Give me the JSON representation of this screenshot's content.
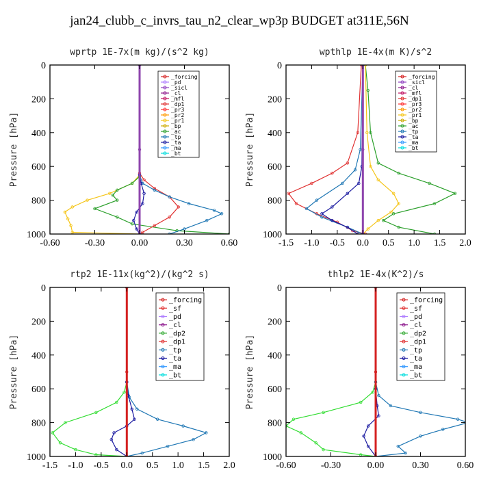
{
  "figure_title": "jan24_clubb_c_invrs_tau_n2_clear_wp3p  BUDGET at311E,56N",
  "chart_data": [
    {
      "type": "line",
      "title": "wprtp  1E-7x(m kg)/(s^2 kg)",
      "ylabel": "Pressure [hPa]",
      "xlim": [
        -0.6,
        0.6
      ],
      "ylim": [
        1000,
        0
      ],
      "xticks": [
        "-0.60",
        "-0.30",
        "0.00",
        "0.30",
        "0.60"
      ],
      "xtick_values": [
        -0.6,
        -0.3,
        0.0,
        0.3,
        0.6
      ],
      "yticks": [
        "0",
        "200",
        "400",
        "600",
        "800",
        "1000"
      ],
      "ytick_values": [
        0,
        200,
        400,
        600,
        800,
        1000
      ],
      "legend": [
        "_forcing",
        "_pd",
        "_sicl",
        "_cl",
        "_mfl",
        "_dp1",
        "_pr3",
        "_pr2",
        "_pr1",
        "_bp",
        "_ac",
        "_tp",
        "_ta",
        "_ma",
        "_bt"
      ],
      "series": [
        {
          "name": "_pr1",
          "color": "#f5c518",
          "x": [
            0,
            0,
            -0.05,
            -0.2,
            -0.35,
            -0.45,
            -0.5,
            -0.48,
            -0.46,
            -0.45,
            0
          ],
          "y": [
            0,
            650,
            700,
            760,
            800,
            840,
            870,
            910,
            950,
            990,
            1000
          ]
        },
        {
          "name": "_ac",
          "color": "#2ca02c",
          "x": [
            0,
            0,
            -0.05,
            -0.15,
            -0.18,
            -0.15,
            -0.3,
            -0.15,
            -0.05,
            0.25,
            0.6
          ],
          "y": [
            0,
            660,
            700,
            740,
            770,
            800,
            850,
            900,
            940,
            980,
            1000
          ]
        },
        {
          "name": "_dp1",
          "color": "#e03030",
          "x": [
            0,
            0,
            0.03,
            0.1,
            0.2,
            0.26,
            0.2,
            0.1,
            0.02,
            0
          ],
          "y": [
            0,
            640,
            680,
            730,
            780,
            840,
            900,
            950,
            990,
            1000
          ]
        },
        {
          "name": "_tp",
          "color": "#1f77b4",
          "x": [
            0,
            0,
            0.02,
            0.1,
            0.2,
            0.33,
            0.5,
            0.55,
            0.45,
            0.3,
            0.2
          ],
          "y": [
            0,
            650,
            700,
            740,
            780,
            820,
            860,
            880,
            920,
            970,
            1000
          ]
        },
        {
          "name": "_ta",
          "color": "#1a1aa0",
          "x": [
            0,
            0,
            0.01,
            0.03,
            0.02,
            -0.02,
            -0.04,
            -0.02,
            0
          ],
          "y": [
            0,
            650,
            700,
            760,
            820,
            870,
            920,
            970,
            1000
          ]
        },
        {
          "name": "_bt",
          "color": "#8e44ad",
          "x": [
            0,
            0,
            0
          ],
          "y": [
            0,
            500,
            1000
          ]
        }
      ]
    },
    {
      "type": "line",
      "title": "wpthlp  1E-4x(m K)/s^2",
      "ylabel": "Pressure [hPa]",
      "xlim": [
        -1.5,
        2.0
      ],
      "ylim": [
        1000,
        0
      ],
      "xticks": [
        "-1.5",
        "-1.0",
        "-0.5",
        "0.0",
        "0.5",
        "1.0",
        "1.5",
        "2.0"
      ],
      "xtick_values": [
        -1.5,
        -1.0,
        -0.5,
        0.0,
        0.5,
        1.0,
        1.5,
        2.0
      ],
      "yticks": [
        "0",
        "200",
        "400",
        "600",
        "800",
        "1000"
      ],
      "ytick_values": [
        0,
        200,
        400,
        600,
        800,
        1000
      ],
      "legend": [
        "_forcing",
        "_sicl",
        "_cl",
        "_mfl",
        "_dp1",
        "_pr3",
        "_pr2",
        "_pr1",
        "_bp",
        "_ac",
        "_tp",
        "_ta",
        "_ma",
        "_bt"
      ],
      "series": [
        {
          "name": "_ac",
          "color": "#2ca02c",
          "x": [
            0.05,
            0.1,
            0.15,
            0.3,
            0.7,
            1.3,
            1.8,
            1.4,
            0.6,
            0.4,
            0.7,
            1.4
          ],
          "y": [
            0,
            150,
            400,
            580,
            640,
            700,
            760,
            820,
            880,
            920,
            960,
            1000
          ]
        },
        {
          "name": "_dp1",
          "color": "#e03030",
          "x": [
            -0.03,
            -0.1,
            -0.3,
            -0.6,
            -1.0,
            -1.45,
            -1.3,
            -0.9,
            -0.5,
            -0.2,
            0.05
          ],
          "y": [
            0,
            400,
            580,
            640,
            700,
            760,
            820,
            880,
            930,
            980,
            1000
          ]
        },
        {
          "name": "_pr1",
          "color": "#f5c518",
          "x": [
            0.05,
            0.08,
            0.15,
            0.3,
            0.6,
            0.7,
            0.55,
            0.3,
            0.1,
            0
          ],
          "y": [
            0,
            400,
            600,
            680,
            760,
            820,
            870,
            920,
            970,
            1000
          ]
        },
        {
          "name": "_tp",
          "color": "#1f77b4",
          "x": [
            0,
            -0.05,
            -0.15,
            -0.4,
            -0.9,
            -1.1,
            -0.8,
            -0.3,
            0
          ],
          "y": [
            0,
            500,
            620,
            700,
            800,
            850,
            900,
            960,
            1000
          ]
        },
        {
          "name": "_ta",
          "color": "#1a1aa0",
          "x": [
            0,
            -0.02,
            -0.08,
            -0.3,
            -0.6,
            -0.8,
            -0.6,
            -0.3,
            -0.1
          ],
          "y": [
            0,
            600,
            700,
            760,
            840,
            880,
            920,
            960,
            1000
          ]
        },
        {
          "name": "_bt",
          "color": "#8e44ad",
          "x": [
            0,
            0,
            0
          ],
          "y": [
            0,
            500,
            1000
          ]
        }
      ]
    },
    {
      "type": "line",
      "title": "rtp2  1E-11x(kg^2)/(kg^2 s)",
      "ylabel": "Pressure [hPa]",
      "xlim": [
        -1.5,
        2.0
      ],
      "ylim": [
        1000,
        0
      ],
      "xticks": [
        "-1.5",
        "-1.0",
        "-0.5",
        "0.0",
        "0.5",
        "1.0",
        "1.5",
        "2.0"
      ],
      "xtick_values": [
        -1.5,
        -1.0,
        -0.5,
        0.0,
        0.5,
        1.0,
        1.5,
        2.0
      ],
      "yticks": [
        "0",
        "200",
        "400",
        "600",
        "800",
        "1000"
      ],
      "ytick_values": [
        0,
        200,
        400,
        600,
        800,
        1000
      ],
      "legend": [
        "_forcing",
        "_sf",
        "_pd",
        "_cl",
        "_dp2",
        "_dp1",
        "_tp",
        "_ta",
        "_ma",
        "_bt"
      ],
      "series": [
        {
          "name": "_dp1",
          "color": "#33dd33",
          "x": [
            0,
            0,
            -0.05,
            -0.2,
            -0.6,
            -1.2,
            -1.45,
            -1.3,
            -1.0,
            -0.6,
            0
          ],
          "y": [
            0,
            560,
            620,
            680,
            740,
            800,
            860,
            920,
            960,
            990,
            1000
          ]
        },
        {
          "name": "_tp",
          "color": "#1f77b4",
          "x": [
            0,
            0,
            0.05,
            0.2,
            0.6,
            1.1,
            1.55,
            1.3,
            0.8,
            0.3,
            0
          ],
          "y": [
            0,
            560,
            650,
            720,
            780,
            820,
            860,
            900,
            940,
            980,
            1000
          ]
        },
        {
          "name": "_ta",
          "color": "#1a1aa0",
          "x": [
            0,
            0,
            0.03,
            0.1,
            0.15,
            0.0,
            -0.25,
            -0.3,
            -0.2,
            0
          ],
          "y": [
            0,
            560,
            640,
            720,
            780,
            820,
            860,
            900,
            960,
            1000
          ]
        },
        {
          "name": "_forcing",
          "color": "#d42020",
          "x": [
            0,
            0,
            0
          ],
          "y": [
            0,
            500,
            1000
          ]
        }
      ]
    },
    {
      "type": "line",
      "title": "thlp2  1E-4x(K^2)/s",
      "ylabel": "Pressure [hPa]",
      "xlim": [
        -0.6,
        0.6
      ],
      "ylim": [
        1000,
        0
      ],
      "xticks": [
        "-0.60",
        "-0.30",
        "0.00",
        "0.30",
        "0.60"
      ],
      "xtick_values": [
        -0.6,
        -0.3,
        0.0,
        0.3,
        0.6
      ],
      "yticks": [
        "0",
        "200",
        "400",
        "600",
        "800",
        "1000"
      ],
      "ytick_values": [
        0,
        200,
        400,
        600,
        800,
        1000
      ],
      "legend": [
        "_forcing",
        "_sf",
        "_pd",
        "_cl",
        "_dp2",
        "_dp1",
        "_tp",
        "_ta",
        "_ma",
        "_bt"
      ],
      "series": [
        {
          "name": "_dp1",
          "color": "#33dd33",
          "x": [
            0,
            0,
            -0.02,
            -0.1,
            -0.35,
            -0.55,
            -0.6,
            -0.5,
            -0.4,
            -0.35,
            -0.1,
            0
          ],
          "y": [
            0,
            560,
            620,
            680,
            740,
            780,
            820,
            860,
            920,
            960,
            990,
            1000
          ]
        },
        {
          "name": "_tp",
          "color": "#1f77b4",
          "x": [
            0,
            0,
            0.02,
            0.1,
            0.3,
            0.55,
            0.62,
            0.45,
            0.3,
            0.15,
            0.2,
            0
          ],
          "y": [
            0,
            560,
            640,
            700,
            740,
            780,
            800,
            840,
            880,
            940,
            980,
            1000
          ]
        },
        {
          "name": "_ta",
          "color": "#1a1aa0",
          "x": [
            0,
            0,
            0.01,
            0.02,
            -0.05,
            -0.08,
            -0.05,
            0
          ],
          "y": [
            0,
            600,
            700,
            760,
            820,
            880,
            940,
            1000
          ]
        },
        {
          "name": "_forcing",
          "color": "#d42020",
          "x": [
            0,
            0,
            0
          ],
          "y": [
            0,
            500,
            1000
          ]
        }
      ]
    }
  ],
  "legend_colors": {
    "_forcing": "#d42020",
    "_sf": "#e03030",
    "_pd": "#b080ff",
    "_sicl": "#9040c0",
    "_cl": "#8e1a8e",
    "_mfl": "#c01060",
    "_dp1": "#e03030",
    "_dp2": "#33aa33",
    "_pr3": "#ff3030",
    "_pr2": "#ff9900",
    "_pr1": "#f5c518",
    "_bp": "#ccaa00",
    "_ac": "#2ca02c",
    "_tp": "#1f77b4",
    "_ta": "#1a1aa0",
    "_ma": "#3399ff",
    "_bt": "#00dddd"
  }
}
